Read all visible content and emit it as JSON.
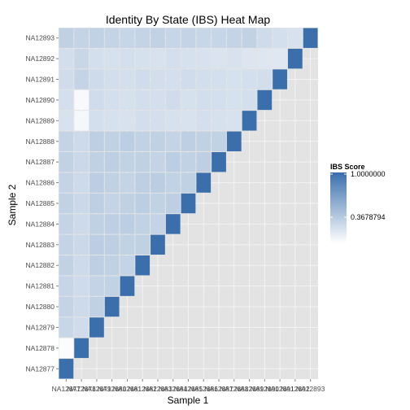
{
  "chart_data": {
    "type": "heatmap",
    "title": "Identity By State (IBS) Heat Map",
    "xlabel": "Sample 1",
    "ylabel": "Sample 2",
    "samples": [
      "NA12877",
      "NA12878",
      "NA12879",
      "NA12880",
      "NA12881",
      "NA12882",
      "NA12883",
      "NA12884",
      "NA12885",
      "NA12886",
      "NA12887",
      "NA12888",
      "NA12889",
      "NA12890",
      "NA12891",
      "NA12892",
      "NA12893"
    ],
    "x_tick_labels": [
      "NA12877",
      "NA12878",
      "NA12879",
      "NA12880",
      "NA12881",
      "NA12882",
      "NA12883",
      "NA12884",
      "NA12885",
      "NA12886",
      "NA12887",
      "NA12888",
      "NA12889",
      "NA12890",
      "NA12891",
      "NA12892",
      "NA12893"
    ],
    "y_tick_labels": [
      "NA12877",
      "NA12878",
      "NA12879",
      "NA12880",
      "NA12881",
      "NA12882",
      "NA12883",
      "NA12884",
      "NA12885",
      "NA12886",
      "NA12887",
      "NA12888",
      "NA12889",
      "NA12890",
      "NA12891",
      "NA12892",
      "NA12893"
    ],
    "lower_triangle_rows": [
      [
        1
      ],
      [
        0.02,
        1
      ],
      [
        0.28,
        0.24,
        1
      ],
      [
        0.3,
        0.26,
        0.32,
        1
      ],
      [
        0.29,
        0.25,
        0.3,
        0.31,
        1
      ],
      [
        0.31,
        0.26,
        0.33,
        0.32,
        0.3,
        1
      ],
      [
        0.3,
        0.27,
        0.34,
        0.33,
        0.31,
        0.32,
        1
      ],
      [
        0.3,
        0.26,
        0.32,
        0.33,
        0.34,
        0.31,
        0.3,
        1
      ],
      [
        0.31,
        0.27,
        0.33,
        0.3,
        0.32,
        0.34,
        0.31,
        0.33,
        1
      ],
      [
        0.3,
        0.26,
        0.34,
        0.32,
        0.3,
        0.33,
        0.35,
        0.31,
        0.32,
        1
      ],
      [
        0.31,
        0.27,
        0.32,
        0.33,
        0.31,
        0.32,
        0.3,
        0.34,
        0.31,
        0.33,
        1
      ],
      [
        0.3,
        0.26,
        0.33,
        0.32,
        0.34,
        0.31,
        0.32,
        0.3,
        0.33,
        0.32,
        0.31,
        1
      ],
      [
        0.2,
        0.05,
        0.22,
        0.21,
        0.2,
        0.23,
        0.22,
        0.21,
        0.2,
        0.22,
        0.21,
        0.2,
        1
      ],
      [
        0.22,
        0.04,
        0.24,
        0.22,
        0.21,
        0.23,
        0.22,
        0.24,
        0.21,
        0.23,
        0.22,
        0.21,
        0.22,
        1
      ],
      [
        0.24,
        0.3,
        0.25,
        0.23,
        0.22,
        0.24,
        0.23,
        0.22,
        0.24,
        0.23,
        0.22,
        0.21,
        0.22,
        0.23,
        1
      ],
      [
        0.23,
        0.28,
        0.22,
        0.21,
        0.22,
        0.21,
        0.2,
        0.22,
        0.21,
        0.2,
        0.19,
        0.2,
        0.18,
        0.17,
        0.16,
        1
      ],
      [
        0.32,
        0.3,
        0.31,
        0.3,
        0.29,
        0.3,
        0.31,
        0.29,
        0.3,
        0.28,
        0.29,
        0.3,
        0.31,
        0.25,
        0.22,
        0.2,
        1
      ]
    ],
    "legend": {
      "title": "IBS Score",
      "labels": [
        "1.0000000",
        "0.3678794"
      ],
      "values": [
        1.0,
        0.3678794
      ],
      "range": [
        0,
        1
      ],
      "low_color": "#ffffff",
      "high_color": "#3a6fac",
      "placement": "right"
    },
    "panel_background": "#e3e3e3",
    "grid": true
  }
}
